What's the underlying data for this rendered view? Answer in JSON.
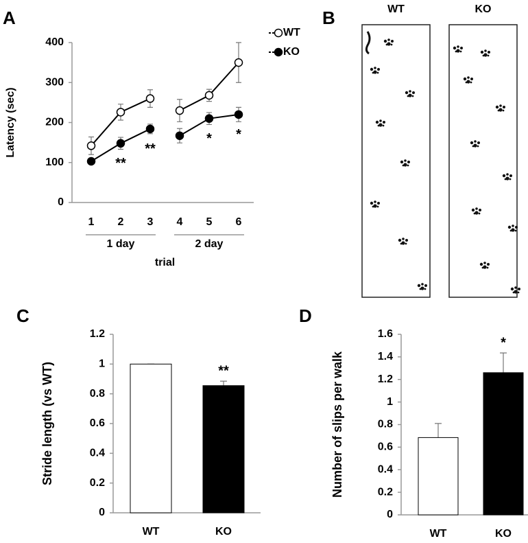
{
  "chart_data": [
    {
      "panel": "A",
      "type": "line",
      "ylabel": "Latency (sec)",
      "xlabel": "trial",
      "categories": [
        "1",
        "2",
        "3",
        "4",
        "5",
        "6"
      ],
      "x_groups": [
        "1 day",
        "2 day"
      ],
      "series": [
        {
          "name": "WT",
          "color": "#ffffff",
          "values": [
            142,
            226,
            260,
            230,
            268,
            350
          ],
          "errors": [
            22,
            20,
            22,
            28,
            15,
            50
          ]
        },
        {
          "name": "KO",
          "color": "#000000",
          "values": [
            103,
            148,
            184,
            167,
            210,
            220
          ],
          "errors": [
            5,
            15,
            12,
            18,
            15,
            18
          ]
        }
      ],
      "significance": [
        null,
        "**",
        "**",
        null,
        "*",
        "*"
      ],
      "ylim": [
        0,
        400
      ],
      "yticks": [
        0,
        100,
        200,
        300,
        400
      ],
      "legend": "top-right"
    },
    {
      "panel": "B",
      "type": "footprint",
      "categories": [
        "WT",
        "KO"
      ]
    },
    {
      "panel": "C",
      "type": "bar",
      "ylabel": "Stride length (vs WT)",
      "categories": [
        "WT",
        "KO"
      ],
      "values": [
        1,
        0.855
      ],
      "errors": [
        0,
        0.03
      ],
      "colors": [
        "#ffffff",
        "#000000"
      ],
      "significance": [
        null,
        "**"
      ],
      "ylim": [
        0,
        1.2
      ],
      "yticks": [
        0,
        0.2,
        0.4,
        0.6,
        0.8,
        1,
        1.2
      ]
    },
    {
      "panel": "D",
      "type": "bar",
      "ylabel": "Number of slips per walk",
      "categories": [
        "WT",
        "KO"
      ],
      "values": [
        0.685,
        1.26
      ],
      "errors": [
        0.125,
        0.175
      ],
      "colors": [
        "#ffffff",
        "#000000"
      ],
      "significance": [
        null,
        "*"
      ],
      "ylim": [
        0,
        1.6
      ],
      "yticks": [
        0,
        0.2,
        0.4,
        0.6,
        0.8,
        1,
        1.2,
        1.4,
        1.6
      ]
    }
  ]
}
